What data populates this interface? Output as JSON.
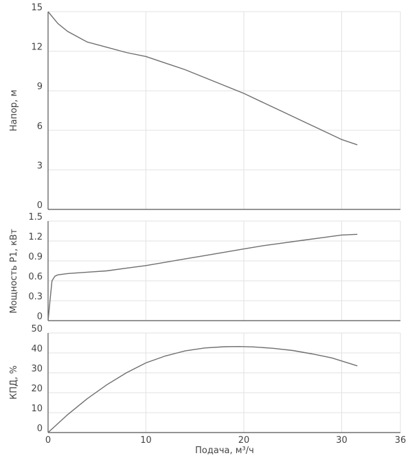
{
  "chart_data": [
    {
      "type": "line",
      "ylabel": "Напор, м",
      "xlabel": "",
      "xlim": [
        0,
        36
      ],
      "ylim": [
        0,
        15
      ],
      "yticks": [
        "0",
        "3",
        "6",
        "9",
        "12",
        "15"
      ],
      "grid": true,
      "series": [
        {
          "x": [
            0,
            1,
            2,
            4,
            6,
            8,
            10,
            12,
            14,
            16,
            18,
            20,
            22,
            24,
            26,
            28,
            30,
            31.6
          ],
          "y": [
            15,
            14.1,
            13.5,
            12.7,
            12.3,
            11.9,
            11.6,
            11.1,
            10.6,
            10.0,
            9.4,
            8.8,
            8.1,
            7.4,
            6.7,
            6.0,
            5.3,
            4.9
          ]
        }
      ]
    },
    {
      "type": "line",
      "ylabel": "Мощность P1, кВт",
      "xlabel": "",
      "xlim": [
        0,
        36
      ],
      "ylim": [
        0,
        1.5
      ],
      "yticks": [
        "0",
        "0.3",
        "0.6",
        "0.9",
        "1.2",
        "1.5"
      ],
      "grid": true,
      "series": [
        {
          "x": [
            0,
            0.2,
            0.4,
            0.7,
            1,
            2,
            4,
            6,
            8,
            10,
            12,
            14,
            16,
            18,
            20,
            22,
            24,
            26,
            28,
            30,
            31.6
          ],
          "y": [
            0,
            0.3,
            0.6,
            0.67,
            0.69,
            0.71,
            0.73,
            0.75,
            0.79,
            0.83,
            0.88,
            0.93,
            0.98,
            1.03,
            1.08,
            1.13,
            1.17,
            1.21,
            1.25,
            1.29,
            1.3
          ]
        }
      ]
    },
    {
      "type": "line",
      "ylabel": "КПД, %",
      "xlabel": "Подача, м³/ч",
      "xlim": [
        0,
        36
      ],
      "ylim": [
        0,
        50
      ],
      "xticks": [
        "0",
        "10",
        "20",
        "30",
        "36"
      ],
      "yticks": [
        "0",
        "10",
        "20",
        "30",
        "40",
        "50"
      ],
      "grid": true,
      "series": [
        {
          "x": [
            0,
            2,
            4,
            6,
            8,
            10,
            12,
            14,
            16,
            18,
            19.5,
            21,
            23,
            25,
            27,
            29,
            31.6
          ],
          "y": [
            0,
            9,
            17,
            24,
            30,
            35,
            38.5,
            41,
            42.5,
            43.1,
            43.2,
            43.0,
            42.3,
            41.2,
            39.5,
            37.5,
            33.5
          ]
        }
      ]
    }
  ]
}
